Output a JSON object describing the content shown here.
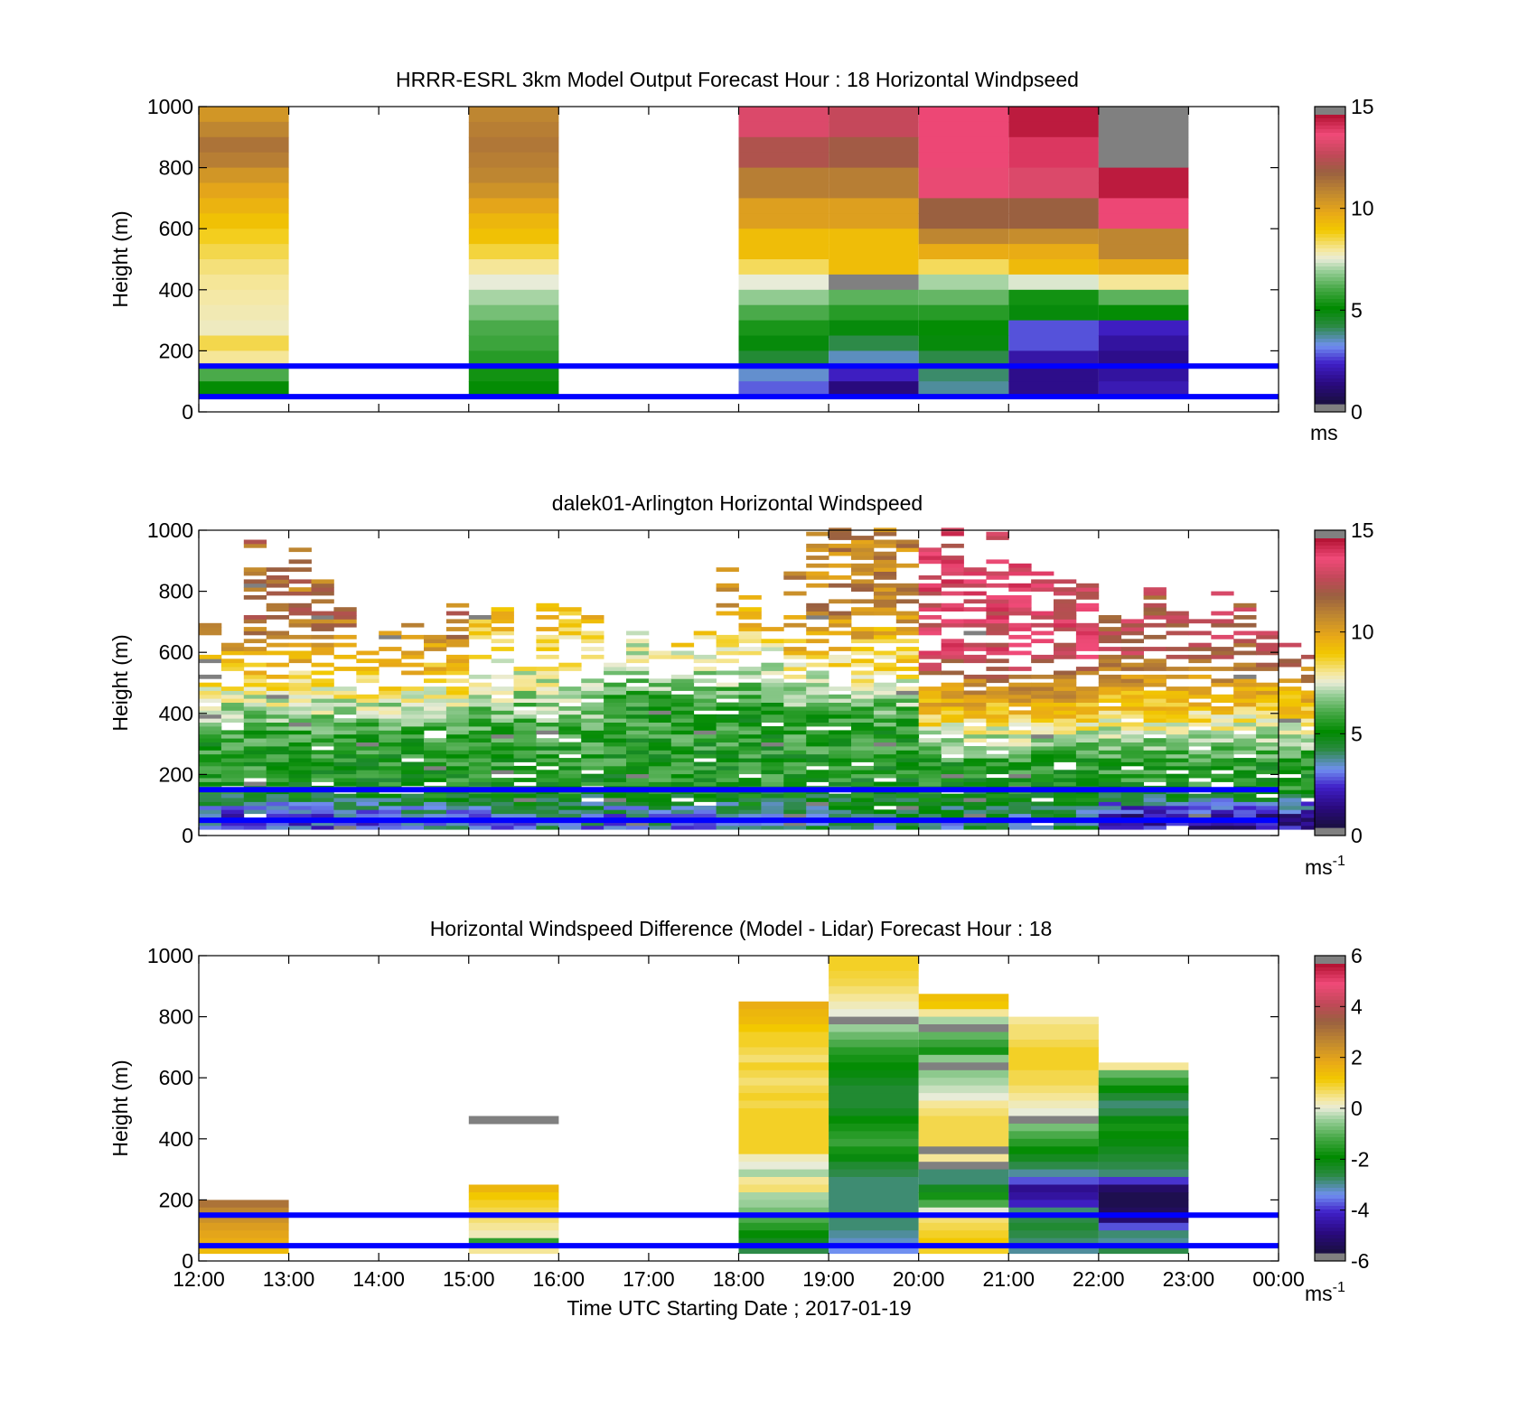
{
  "colors": {
    "axis": "#000000",
    "reference_line": "#0000ff",
    "missing": "#808080",
    "colormap": [
      [
        0.0,
        "#1a1040"
      ],
      [
        0.07,
        "#2a0a80"
      ],
      [
        0.14,
        "#4020c8"
      ],
      [
        0.2,
        "#7090f0"
      ],
      [
        0.27,
        "#2a8a40"
      ],
      [
        0.33,
        "#008a00"
      ],
      [
        0.4,
        "#4aaa4a"
      ],
      [
        0.46,
        "#9acf9a"
      ],
      [
        0.5,
        "#e8ecd8"
      ],
      [
        0.53,
        "#f5e8a0"
      ],
      [
        0.6,
        "#f2c800"
      ],
      [
        0.66,
        "#e8a818"
      ],
      [
        0.73,
        "#c08830"
      ],
      [
        0.8,
        "#9a6040"
      ],
      [
        0.86,
        "#c04858"
      ],
      [
        0.93,
        "#f04a78"
      ],
      [
        1.0,
        "#b01030"
      ]
    ]
  },
  "x_labels": [
    "12:00",
    "13:00",
    "14:00",
    "15:00",
    "16:00",
    "17:00",
    "18:00",
    "19:00",
    "20:00",
    "21:00",
    "22:00",
    "23:00",
    "00:00"
  ],
  "x_axis_label": "Time UTC  Starting Date ; 2017-01-19",
  "chart_data": [
    {
      "type": "heatmap",
      "title": "HRRR-ESRL 3km Model Output   Forecast Hour : 18 Horizontal Windpseed",
      "ylabel": "Height (m)",
      "ylim": [
        0,
        1000
      ],
      "yticks": [
        0,
        200,
        400,
        600,
        800,
        1000
      ],
      "xlim": [
        12,
        24
      ],
      "colorbar": {
        "range": [
          0,
          15
        ],
        "ticks": [
          0,
          5,
          10,
          15
        ],
        "unit": "ms",
        "unit_sup": ""
      },
      "reference_lines_m": [
        50,
        150
      ],
      "cell_height_m": 50,
      "columns": [
        {
          "x0": 12,
          "x1": 13,
          "z_top": 1000,
          "z_bottom": 50,
          "values": [
            10.5,
            11.0,
            11.5,
            11.2,
            10.5,
            10.0,
            9.6,
            9.2,
            8.8,
            8.5,
            8.2,
            8.0,
            7.9,
            7.8,
            7.7,
            8.5,
            8.0,
            6.0,
            5.0
          ]
        },
        {
          "x0": 15,
          "x1": 16,
          "z_top": 1000,
          "z_bottom": 50,
          "values": [
            11.0,
            11.2,
            11.4,
            11.2,
            11.0,
            10.6,
            10.0,
            9.5,
            9.2,
            8.6,
            8.0,
            7.5,
            7.0,
            6.5,
            6.0,
            5.8,
            5.5,
            5.2,
            5.0
          ]
        },
        {
          "x0": 18,
          "x1": 19,
          "z_top": 1000,
          "z_bottom": 50,
          "values": [
            13.5,
            13.5,
            12.5,
            12.5,
            11.2,
            11.2,
            10.2,
            10.2,
            9.3,
            9.3,
            8.4,
            7.5,
            6.8,
            6.0,
            5.3,
            4.8,
            4.2,
            3.2,
            2.6
          ]
        },
        {
          "x0": 19,
          "x1": 20,
          "z_top": 1000,
          "z_bottom": 50,
          "values": [
            13.0,
            13.0,
            12.2,
            12.2,
            11.2,
            11.2,
            10.2,
            10.2,
            9.3,
            9.3,
            9.3,
            15.5,
            6.2,
            5.5,
            4.8,
            4.0,
            3.3,
            2.0,
            1.0
          ]
        },
        {
          "x0": 20,
          "x1": 21,
          "z_top": 1000,
          "z_bottom": 50,
          "values": [
            14.0,
            14.0,
            14.0,
            14.0,
            13.8,
            13.8,
            12.0,
            12.0,
            11.0,
            9.8,
            8.4,
            7.0,
            6.3,
            5.5,
            5.0,
            4.8,
            4.0,
            3.8,
            3.5
          ]
        },
        {
          "x0": 21,
          "x1": 22,
          "z_top": 1000,
          "z_bottom": 50,
          "values": [
            14.8,
            14.8,
            14.3,
            14.3,
            13.5,
            13.5,
            12.0,
            12.0,
            10.8,
            9.8,
            9.4,
            7.4,
            5.2,
            4.8,
            2.5,
            2.5,
            1.6,
            1.2,
            1.2
          ]
        },
        {
          "x0": 22,
          "x1": 23,
          "z_top": 1000,
          "z_bottom": 50,
          "values": [
            15.5,
            15.5,
            15.5,
            15.5,
            14.8,
            14.8,
            14.0,
            14.0,
            11.0,
            11.0,
            9.8,
            8.0,
            6.2,
            5.0,
            2.0,
            1.5,
            1.2,
            1.5,
            1.8
          ]
        }
      ]
    },
    {
      "type": "heatmap",
      "title": "dalek01-Arlington  Horizontal Windspeed",
      "ylabel": "Height (m)",
      "ylim": [
        0,
        1000
      ],
      "yticks": [
        0,
        200,
        400,
        600,
        800,
        1000
      ],
      "xlim": [
        12,
        24
      ],
      "colorbar": {
        "range": [
          0,
          15
        ],
        "ticks": [
          0,
          5,
          10,
          15
        ],
        "unit": "ms",
        "unit_sup": "-1"
      },
      "reference_lines_m": [
        50,
        150
      ],
      "lidar_columns_start_hour": 12,
      "lidar_columns_step_hours": 0.25,
      "lidar_profile_tops_m": [
        700,
        620,
        960,
        880,
        950,
        860,
        760,
        600,
        680,
        700,
        690,
        760,
        720,
        740,
        560,
        780,
        760,
        710,
        560,
        660,
        600,
        640,
        660,
        900,
        810,
        680,
        920,
        1000,
        1000,
        1000,
        1000,
        980,
        980,
        1000,
        870,
        1000,
        900,
        860,
        860,
        820,
        760,
        700,
        820,
        760,
        700,
        800,
        750,
        680,
        640,
        580
      ]
    },
    {
      "type": "heatmap",
      "title": "Horizontal Windspeed Difference (Model - Lidar) Forecast Hour : 18",
      "ylabel": "Height (m)",
      "ylim": [
        0,
        1000
      ],
      "yticks": [
        0,
        200,
        400,
        600,
        800,
        1000
      ],
      "xlim": [
        12,
        24
      ],
      "colorbar": {
        "range": [
          -6,
          6
        ],
        "ticks": [
          -6,
          -4,
          -2,
          0,
          2,
          4,
          6
        ],
        "unit": "ms",
        "unit_sup": "-1"
      },
      "reference_lines_m": [
        50,
        150
      ],
      "cell_height_m": 25,
      "columns": [
        {
          "x0": 12,
          "x1": 13,
          "z_top": 200,
          "z_bottom": 25,
          "values": [
            3.2,
            2.8,
            2.5,
            2.2,
            2.0,
            1.8,
            1.5
          ]
        },
        {
          "x0": 15,
          "x1": 16,
          "z_top": 475,
          "z_bottom": 450,
          "values": [
            6.2
          ]
        },
        {
          "x0": 15,
          "x1": 16,
          "z_top": 250,
          "z_bottom": 25,
          "values": [
            1.6,
            1.2,
            1.0,
            0.8,
            0.6,
            0.4,
            0.2,
            -1.5,
            0.4
          ]
        },
        {
          "x0": 18,
          "x1": 19,
          "z_top": 850,
          "z_bottom": 25,
          "values": [
            1.8,
            1.6,
            1.5,
            1.2,
            1.0,
            1.0,
            0.8,
            0.6,
            1.0,
            0.8,
            0.6,
            0.8,
            1.0,
            0.8,
            1.0,
            1.0,
            1.0,
            1.0,
            1.0,
            1.0,
            0.2,
            0.0,
            -0.4,
            0.4,
            0.6,
            -0.4,
            -0.5,
            -0.8,
            -1.2,
            -1.6,
            -2.0,
            -2.4,
            -2.8
          ]
        },
        {
          "x0": 19,
          "x1": 20,
          "z_top": 1000,
          "z_bottom": 25,
          "values": [
            1.0,
            1.0,
            0.9,
            0.8,
            0.6,
            0.4,
            0.2,
            0.0,
            6.2,
            -0.5,
            -0.9,
            -1.2,
            -1.6,
            -1.8,
            -2.0,
            -2.2,
            -2.4,
            -2.6,
            -2.6,
            -2.6,
            -2.4,
            -2.0,
            -1.8,
            -1.6,
            -1.4,
            -1.8,
            -2.2,
            -2.6,
            -2.8,
            -3.0,
            -3.0,
            -3.0,
            -3.0,
            -3.0,
            -3.0,
            -3.0,
            -3.2,
            -3.4,
            -3.6
          ]
        },
        {
          "x0": 20,
          "x1": 21,
          "z_top": 875,
          "z_bottom": 25,
          "values": [
            1.4,
            1.2,
            0.4,
            -0.4,
            6.2,
            -1.0,
            -1.4,
            -1.8,
            -0.6,
            6.2,
            -0.6,
            -0.4,
            -0.2,
            0.0,
            0.4,
            0.6,
            0.8,
            0.8,
            0.8,
            0.8,
            6.2,
            0.4,
            -6.2,
            -3.0,
            -3.0,
            -2.4,
            -1.8,
            -1.2,
            0.0,
            0.6,
            0.8,
            1.0,
            1.2,
            1.0
          ]
        },
        {
          "x0": 21,
          "x1": 22,
          "z_top": 800,
          "z_bottom": 25,
          "values": [
            0.4,
            0.6,
            0.6,
            0.8,
            1.0,
            1.0,
            1.0,
            0.8,
            0.8,
            0.6,
            0.4,
            0.2,
            0.0,
            6.2,
            -0.8,
            -1.2,
            -1.6,
            -2.0,
            -2.4,
            -2.8,
            -3.2,
            -4.0,
            -5.0,
            -4.8,
            -4.4,
            -3.0,
            -2.8,
            -2.6,
            -2.8,
            -3.0,
            -3.2
          ]
        },
        {
          "x0": 22,
          "x1": 23,
          "z_top": 650,
          "z_bottom": 25,
          "values": [
            0.4,
            -1.0,
            -1.5,
            -2.0,
            -2.6,
            -3.0,
            -2.8,
            -2.2,
            -1.8,
            -2.0,
            -2.2,
            -2.4,
            -2.6,
            -2.8,
            -3.0,
            -4.2,
            -5.5,
            -5.8,
            -5.8,
            -5.6,
            -5.4,
            -4.0,
            -3.0,
            -3.2,
            -2.8
          ]
        }
      ]
    }
  ]
}
